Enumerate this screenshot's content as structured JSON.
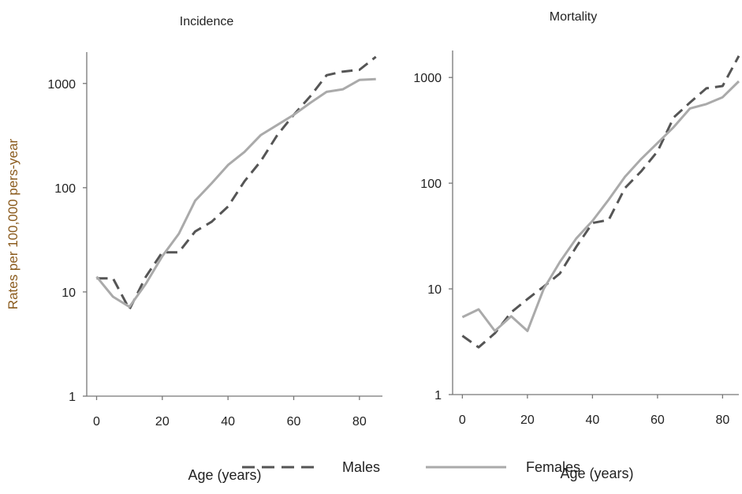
{
  "chart_data": [
    {
      "type": "line",
      "title": "Incidence",
      "xlabel": "Age (years)",
      "ylabel": "Rates per 100,000 pers-year",
      "yscale": "log",
      "xlim": [
        -3,
        87
      ],
      "ylim": [
        1,
        2000
      ],
      "xticks": [
        0,
        20,
        40,
        60,
        80
      ],
      "yticks": [
        1,
        10,
        100,
        1000
      ],
      "series": [
        {
          "name": "Males",
          "style": "dashed",
          "color": "#555555",
          "x": [
            0,
            5,
            10,
            15,
            20,
            25,
            30,
            35,
            40,
            45,
            50,
            55,
            60,
            65,
            70,
            75,
            80,
            85
          ],
          "y": [
            13.5,
            13.5,
            6.8,
            14,
            24,
            24,
            38,
            47,
            66,
            115,
            180,
            320,
            500,
            750,
            1200,
            1300,
            1350,
            1800
          ]
        },
        {
          "name": "Females",
          "style": "solid",
          "color": "#aaaaaa",
          "x": [
            0,
            5,
            10,
            15,
            20,
            25,
            30,
            35,
            40,
            45,
            50,
            55,
            60,
            65,
            70,
            75,
            80,
            85
          ],
          "y": [
            14,
            9,
            7.2,
            12,
            22,
            36,
            75,
            110,
            165,
            220,
            320,
            400,
            500,
            650,
            830,
            880,
            1080,
            1100
          ]
        }
      ]
    },
    {
      "type": "line",
      "title": "Mortality",
      "xlabel": "Age (years)",
      "ylabel": "",
      "yscale": "log",
      "xlim": [
        -3,
        85
      ],
      "ylim": [
        1,
        1800
      ],
      "xticks": [
        0,
        20,
        40,
        60,
        80
      ],
      "yticks": [
        1,
        10,
        100,
        1000
      ],
      "series": [
        {
          "name": "Males",
          "style": "dashed",
          "color": "#555555",
          "x": [
            0,
            5,
            10,
            15,
            20,
            25,
            30,
            35,
            40,
            45,
            50,
            55,
            60,
            65,
            70,
            75,
            80,
            85
          ],
          "y": [
            3.6,
            2.8,
            3.8,
            6,
            8,
            10.5,
            14,
            25,
            42,
            45,
            90,
            130,
            200,
            420,
            580,
            790,
            830,
            1600
          ]
        },
        {
          "name": "Females",
          "style": "solid",
          "color": "#aaaaaa",
          "x": [
            0,
            5,
            10,
            15,
            20,
            25,
            30,
            35,
            40,
            45,
            50,
            55,
            60,
            65,
            70,
            75,
            80,
            85
          ],
          "y": [
            5.4,
            6.4,
            4,
            5.5,
            4,
            10,
            18,
            30,
            44,
            70,
            115,
            170,
            240,
            340,
            510,
            560,
            650,
            920
          ]
        }
      ]
    }
  ],
  "legend": {
    "placement": "bottom-center",
    "items": [
      {
        "label": "Males",
        "style": "dashed",
        "color": "#555555"
      },
      {
        "label": "Females",
        "style": "solid",
        "color": "#aaaaaa"
      }
    ]
  }
}
